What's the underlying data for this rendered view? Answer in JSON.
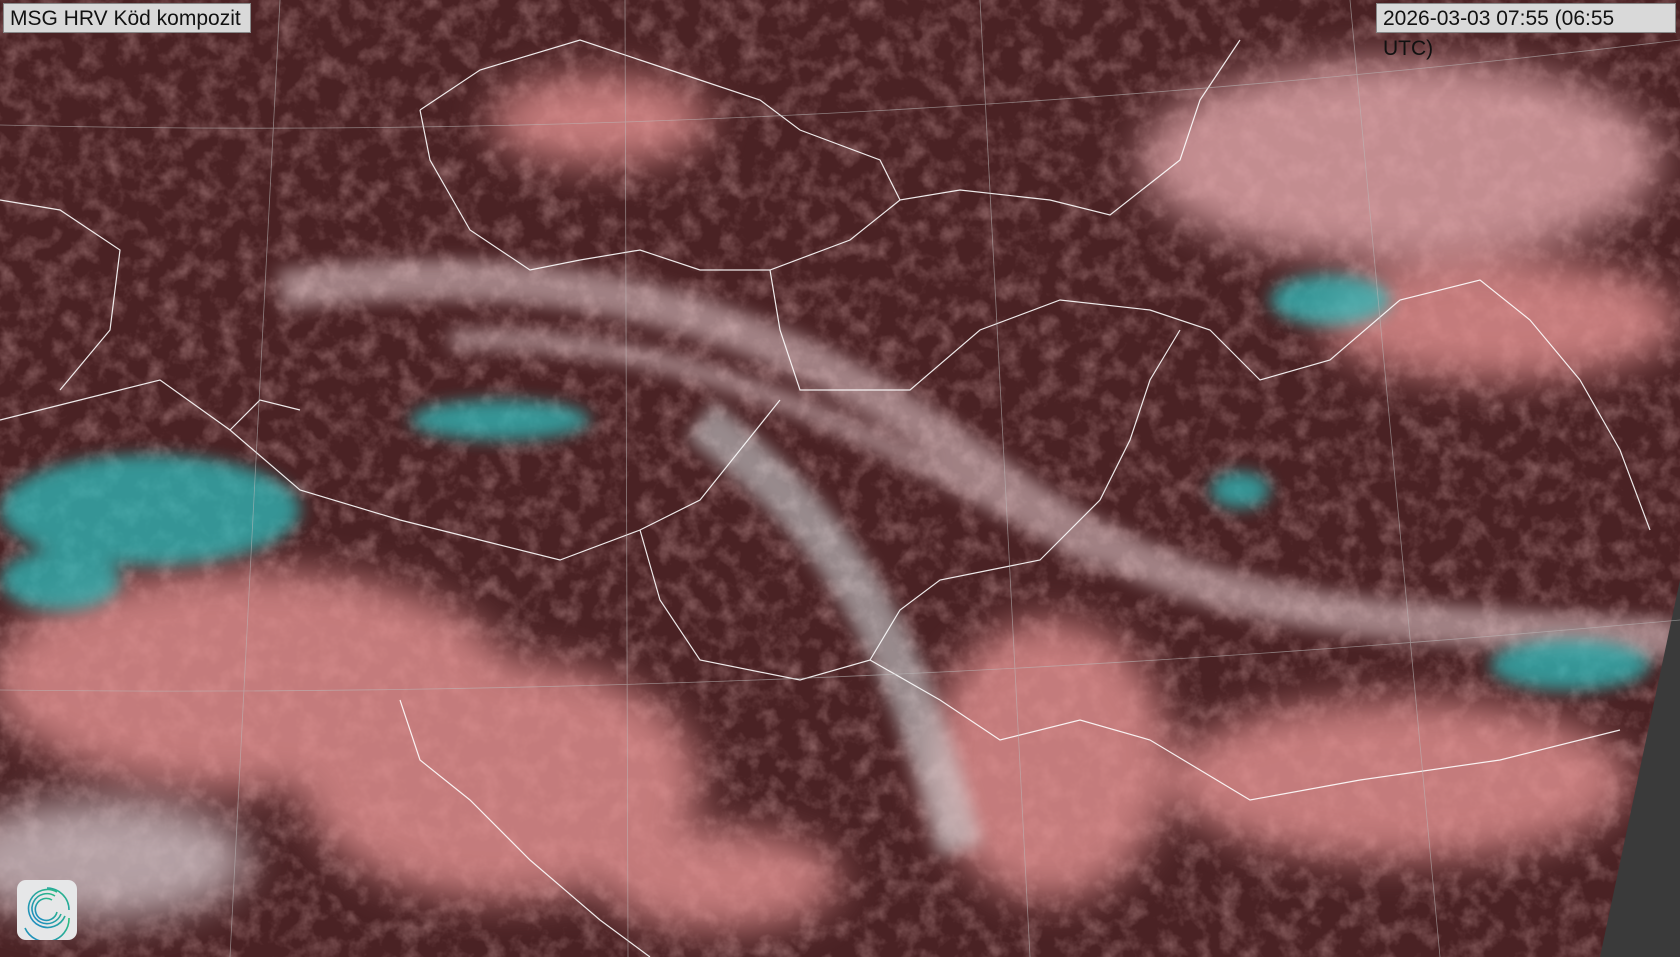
{
  "title": "MSG HRV Köd kompozit",
  "timestamp": "2026-03-03 07:55 (06:55 UTC)",
  "logo_icon": "swirl-logo-icon",
  "colors": {
    "land": "#4a2224",
    "cloud_low": "#e89a9a",
    "cloud_high": "#d8dede",
    "snow": "#35c9c9",
    "no_data": "#3a3a3a",
    "borders": "#ffffff"
  }
}
